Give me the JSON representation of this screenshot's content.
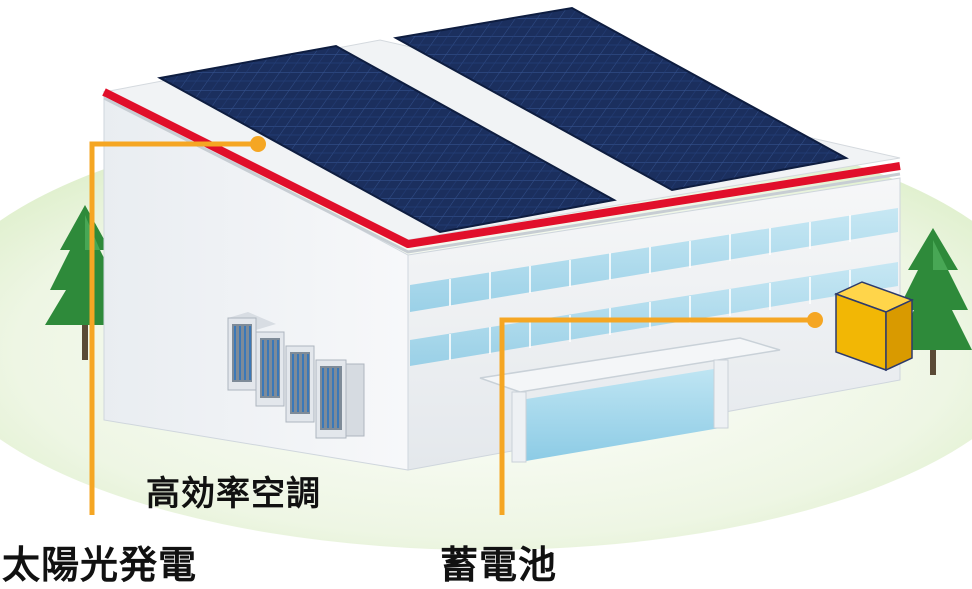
{
  "labels": {
    "hvac": "高効率空調",
    "solar": "太陽光発電",
    "battery": "蓄電池"
  },
  "colors": {
    "callout_line": "#f5a623",
    "roof_edge": "#e10f2a",
    "solar_panel": "#1a2d5c",
    "battery_box": "#f2b705",
    "tree": "#2f8a3a",
    "ground": "#e6f2d6"
  },
  "icons": [
    "solar-panel-icon",
    "battery-icon",
    "air-conditioner-icon",
    "tree-icon",
    "building-icon"
  ]
}
